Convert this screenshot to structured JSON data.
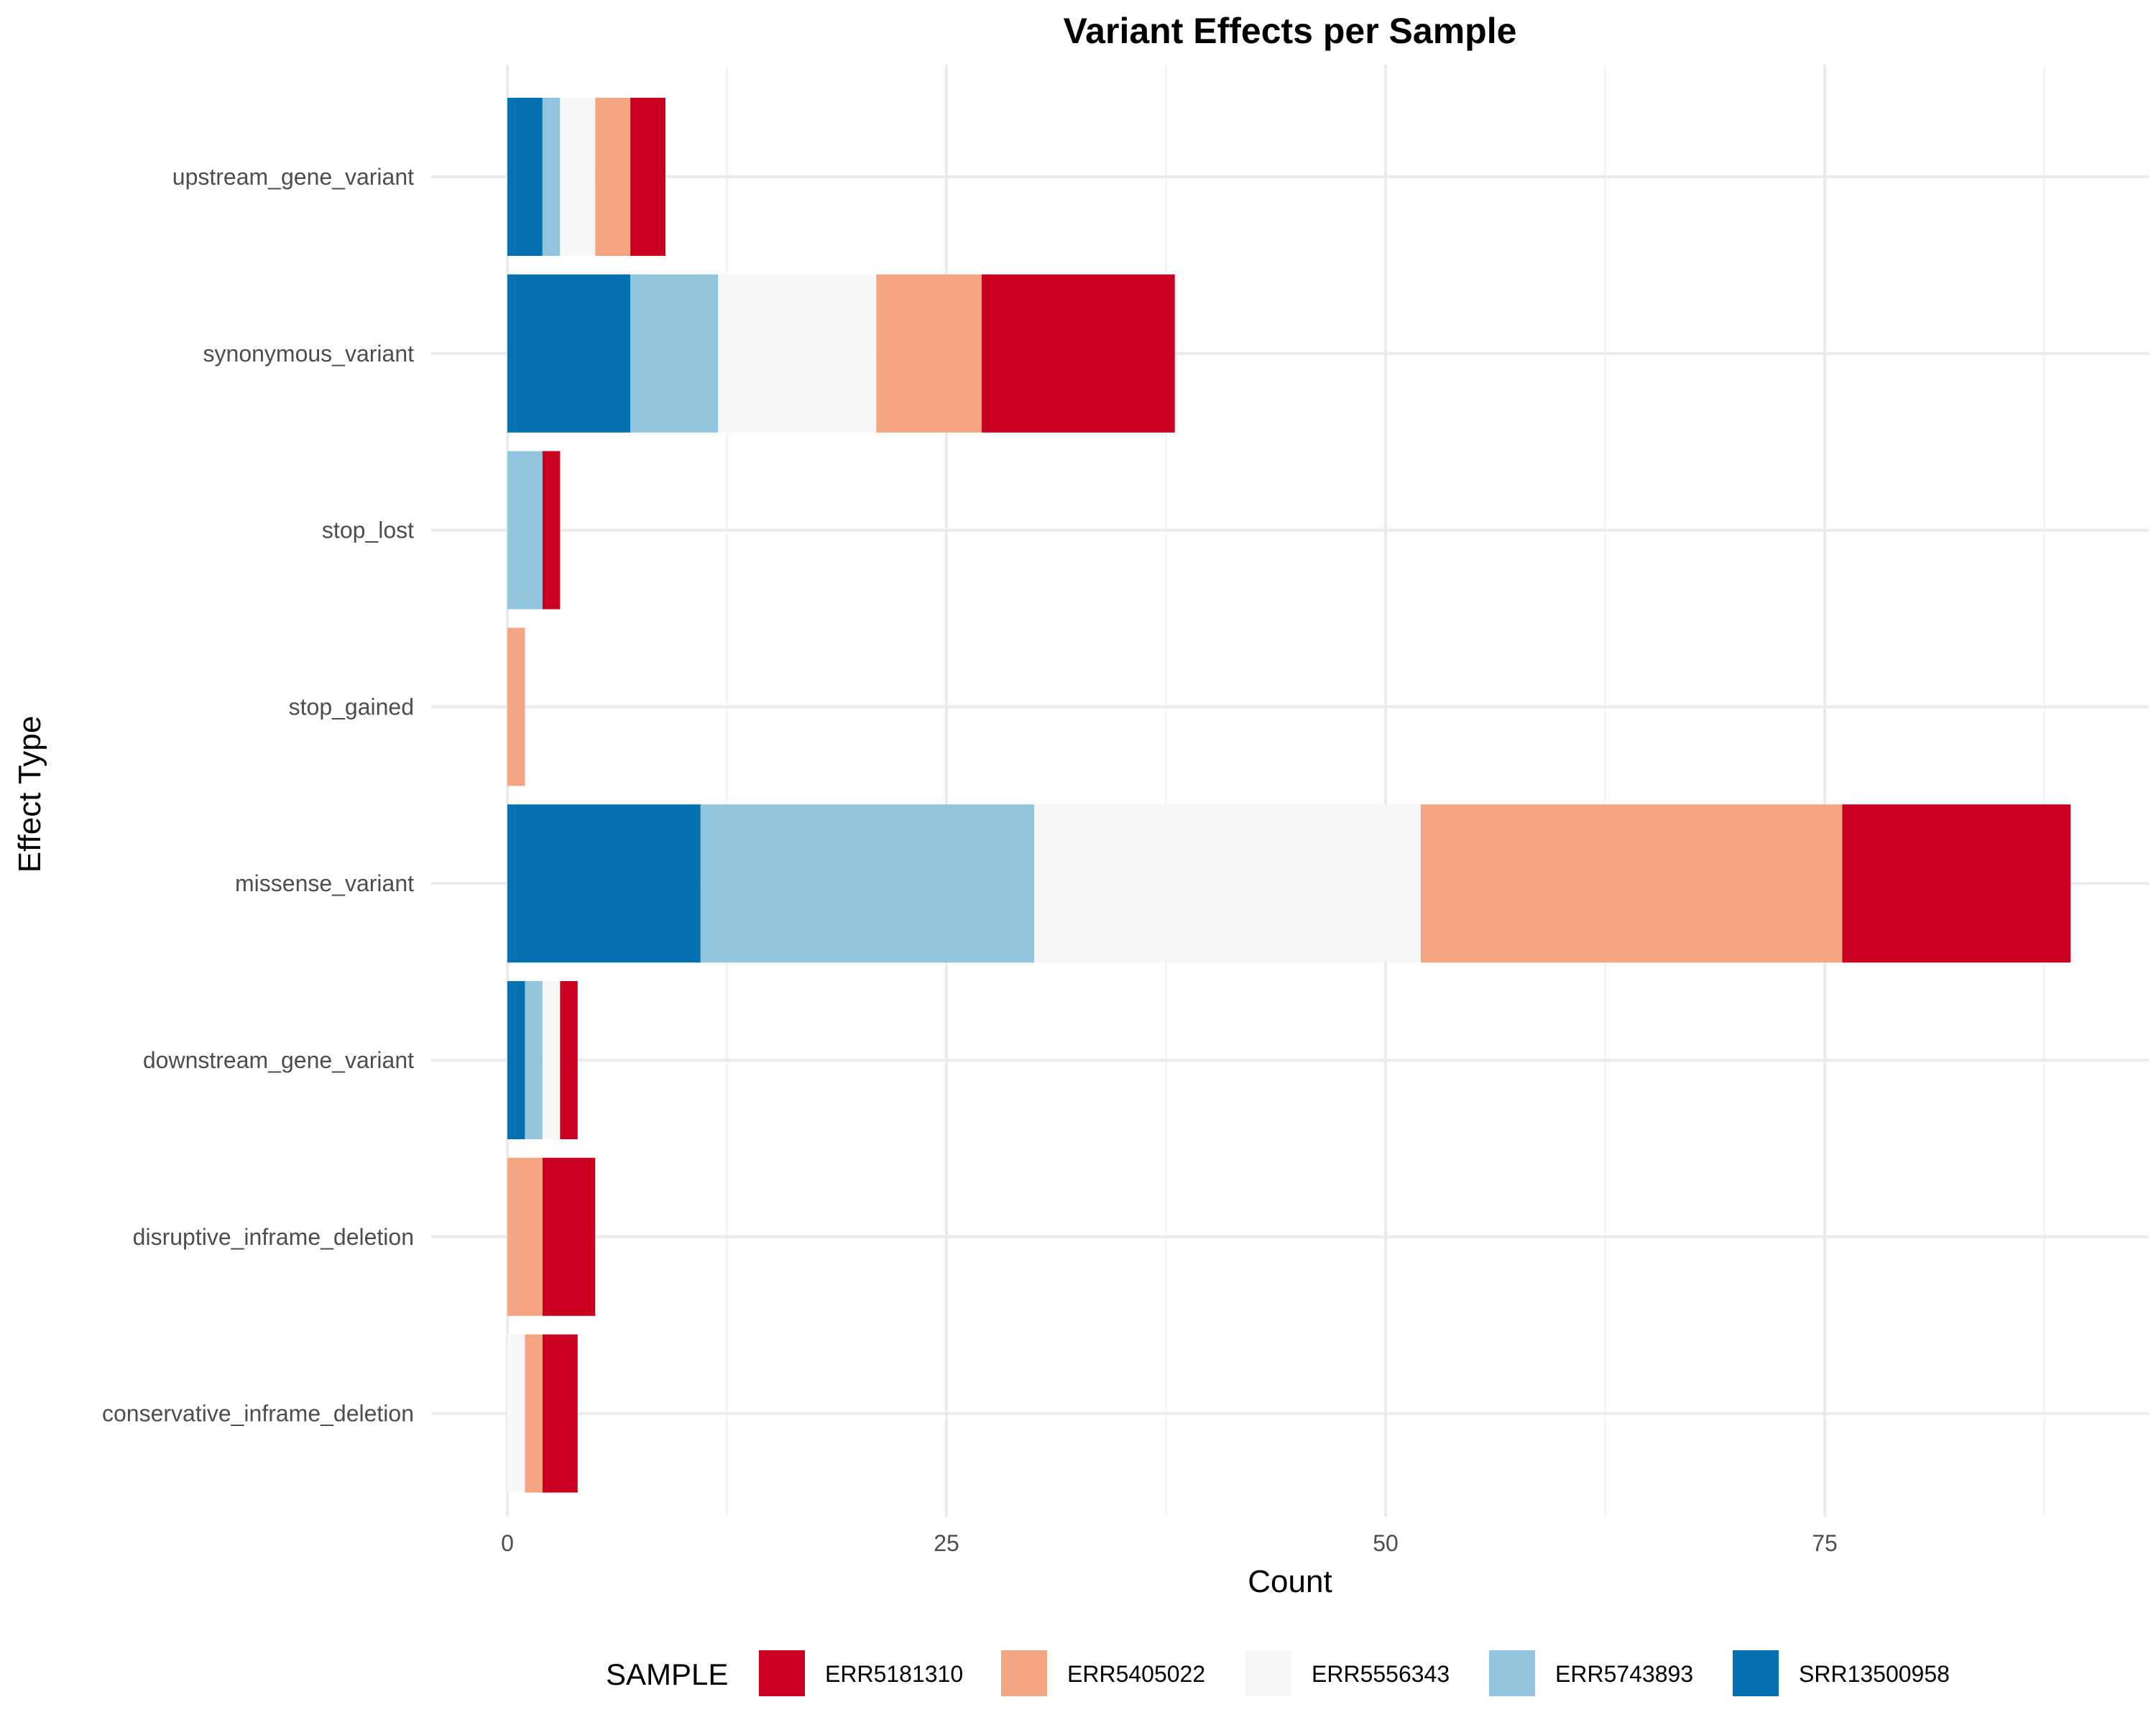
{
  "chart_data": {
    "type": "bar",
    "orientation": "horizontal",
    "stacked": true,
    "title": "Variant Effects per Sample",
    "xlabel": "Count",
    "ylabel": "Effect Type",
    "xlim": [
      0,
      93
    ],
    "xticks": [
      0,
      25,
      50,
      75
    ],
    "grid": true,
    "categories": [
      "upstream_gene_variant",
      "synonymous_variant",
      "stop_lost",
      "stop_gained",
      "missense_variant",
      "downstream_gene_variant",
      "disruptive_inframe_deletion",
      "conservative_inframe_deletion"
    ],
    "series": [
      {
        "name": "SRR13500958",
        "color": "#0571b0",
        "values": [
          2,
          7,
          0,
          0,
          11,
          1,
          0,
          0
        ]
      },
      {
        "name": "ERR5743893",
        "color": "#92c5de",
        "values": [
          1,
          5,
          2,
          0,
          19,
          1,
          0,
          0
        ]
      },
      {
        "name": "ERR5556343",
        "color": "#f7f7f7",
        "values": [
          2,
          9,
          0,
          0,
          22,
          1,
          0,
          1
        ]
      },
      {
        "name": "ERR5405022",
        "color": "#f4a582",
        "values": [
          2,
          6,
          0,
          1,
          24,
          0,
          2,
          1
        ]
      },
      {
        "name": "ERR5181310",
        "color": "#ca0020",
        "values": [
          2,
          11,
          1,
          0,
          13,
          1,
          3,
          2
        ]
      }
    ],
    "legend": {
      "title": "SAMPLE",
      "position": "bottom",
      "order": [
        "ERR5181310",
        "ERR5405022",
        "ERR5556343",
        "ERR5743893",
        "SRR13500958"
      ]
    }
  }
}
